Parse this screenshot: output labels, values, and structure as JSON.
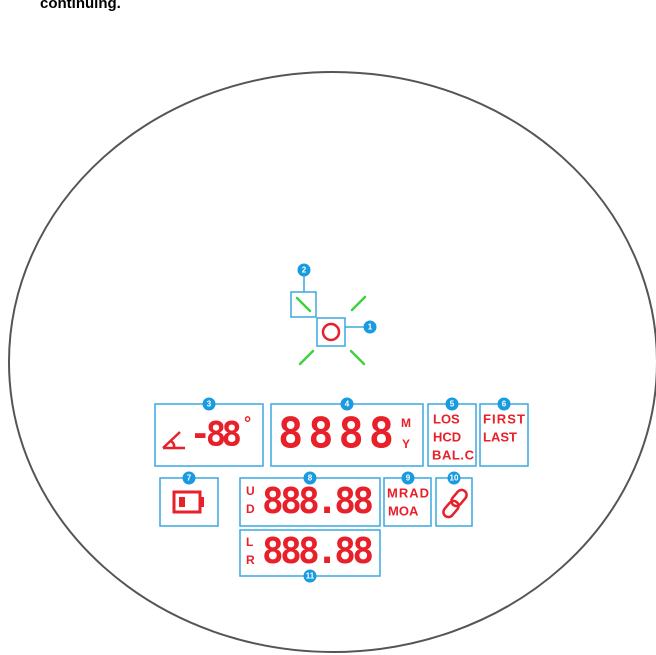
{
  "header": {
    "text": "continuing."
  },
  "callouts": [
    "1",
    "2",
    "3",
    "4",
    "5",
    "6",
    "7",
    "8",
    "9",
    "10",
    "11"
  ],
  "angle": {
    "digits": "-88",
    "degree": "°"
  },
  "distance": {
    "digits": "8888",
    "units": [
      "M",
      "Y"
    ]
  },
  "modes": [
    "LOS",
    "HCD",
    "BAL.C"
  ],
  "targets": [
    "FIRST",
    "LAST"
  ],
  "vertical": {
    "labels": [
      "U",
      "D"
    ],
    "digits": "888.88"
  },
  "adjust_units": [
    "MRAD",
    "MOA"
  ],
  "horizontal": {
    "labels": [
      "L",
      "R"
    ],
    "digits": "888.88"
  }
}
